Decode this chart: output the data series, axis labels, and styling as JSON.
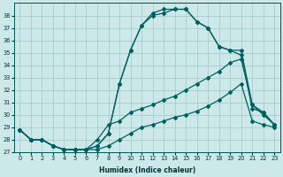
{
  "xlabel": "Humidex (Indice chaleur)",
  "bg_color": "#cce8e8",
  "grid_color": "#aacccc",
  "line_color": "#006060",
  "xlim": [
    -0.5,
    23.5
  ],
  "ylim": [
    27,
    39
  ],
  "xticks": [
    0,
    1,
    2,
    3,
    4,
    5,
    6,
    7,
    8,
    9,
    10,
    11,
    12,
    13,
    14,
    15,
    16,
    17,
    18,
    19,
    20,
    21,
    22,
    23
  ],
  "yticks": [
    27,
    28,
    29,
    30,
    31,
    32,
    33,
    34,
    35,
    36,
    37,
    38
  ],
  "line1_x": [
    0,
    1,
    2,
    3,
    4,
    5,
    6,
    7,
    8,
    9,
    10,
    11,
    12,
    13,
    14,
    15,
    16,
    17,
    18,
    19,
    20,
    21,
    22,
    23
  ],
  "line1_y": [
    28.8,
    28.0,
    28.0,
    27.5,
    27.2,
    27.2,
    27.2,
    27.2,
    27.5,
    28.0,
    28.5,
    29.0,
    29.2,
    29.5,
    29.8,
    30.0,
    30.3,
    30.7,
    31.2,
    31.8,
    32.5,
    29.5,
    29.2,
    29.0
  ],
  "line2_x": [
    0,
    1,
    2,
    3,
    4,
    5,
    6,
    7,
    8,
    9,
    10,
    11,
    12,
    13,
    14,
    15,
    16,
    17,
    18,
    19,
    20,
    21,
    22,
    23
  ],
  "line2_y": [
    28.8,
    28.0,
    28.0,
    27.5,
    27.2,
    27.2,
    27.2,
    28.0,
    29.2,
    29.5,
    30.2,
    30.5,
    30.8,
    31.2,
    31.5,
    32.0,
    32.5,
    33.0,
    33.5,
    34.2,
    34.5,
    30.8,
    30.2,
    29.2
  ],
  "line3_x": [
    0,
    1,
    2,
    3,
    4,
    5,
    6,
    7,
    8,
    9,
    10,
    11,
    12,
    13,
    14,
    15,
    16,
    17,
    18,
    19,
    20,
    21,
    22,
    23
  ],
  "line3_y": [
    28.8,
    28.0,
    28.0,
    27.5,
    27.2,
    27.2,
    27.2,
    27.5,
    28.5,
    32.5,
    35.2,
    37.2,
    38.0,
    38.2,
    38.5,
    38.5,
    37.5,
    37.0,
    35.5,
    35.2,
    35.2,
    30.8,
    30.0,
    29.2
  ],
  "line4_x": [
    0,
    1,
    2,
    3,
    4,
    5,
    6,
    7,
    8,
    9,
    10,
    11,
    12,
    13,
    14,
    15,
    16,
    17,
    18,
    19,
    20,
    21,
    22,
    23
  ],
  "line4_y": [
    28.8,
    28.0,
    28.0,
    27.5,
    27.2,
    27.2,
    27.2,
    27.5,
    28.5,
    32.5,
    35.2,
    37.2,
    38.2,
    38.5,
    38.5,
    38.5,
    37.5,
    37.0,
    35.5,
    35.2,
    34.8,
    30.5,
    30.2,
    29.2
  ],
  "xlabel_fontsize": 5.5,
  "tick_fontsize": 4.8
}
